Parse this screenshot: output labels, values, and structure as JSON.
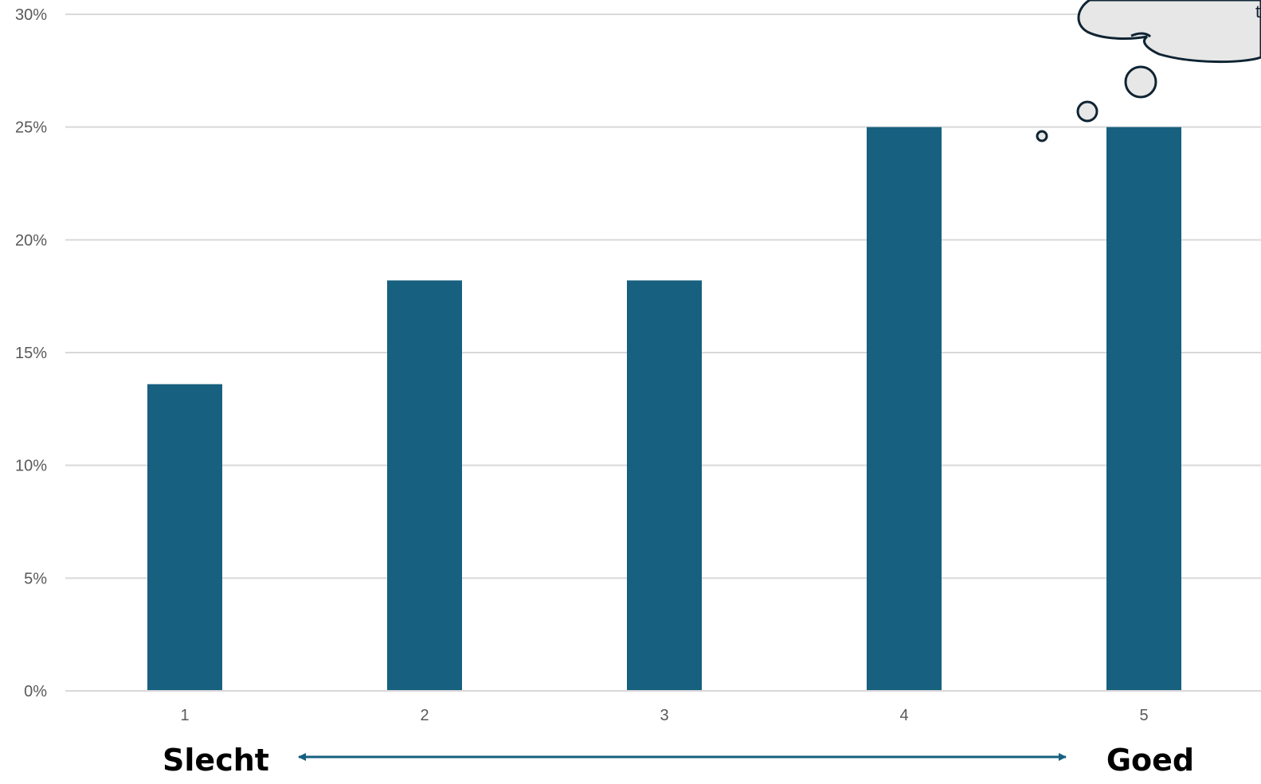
{
  "chart_data": {
    "type": "bar",
    "categories": [
      "1",
      "2",
      "3",
      "4",
      "5"
    ],
    "values": [
      13.6,
      18.2,
      18.2,
      25.0,
      25.0
    ],
    "ylim": [
      0,
      30
    ],
    "yticks": [
      "0%",
      "5%",
      "10%",
      "15%",
      "20%",
      "25%",
      "30%"
    ],
    "y_unit": "%",
    "grid": true,
    "bar_color": "#17607f",
    "title": "",
    "xlabel": "",
    "ylabel": ""
  },
  "scale": {
    "low_label": "Slecht",
    "high_label": "Goed",
    "arrow_color": "#17607f"
  },
  "callout": {
    "shape": "thought-bubble",
    "fill": "#e7e7e7",
    "stroke": "#0f2433",
    "text_fragment": "t"
  }
}
